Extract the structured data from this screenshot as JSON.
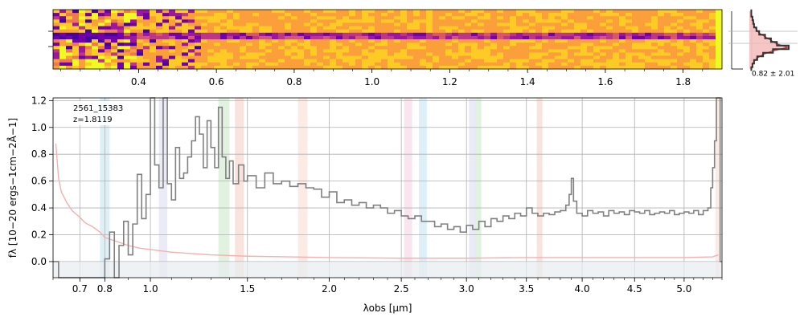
{
  "figure": {
    "object_label": "2561_15383",
    "redshift_label": "z=1.8119",
    "profile_stat": "0.82 ± 2.01"
  },
  "colors": {
    "spectrum": "#808080",
    "model": "#f4b0b0",
    "profile_fill": "#f4b8b8",
    "profile_model": "#c0392b",
    "profile_data": "#333333",
    "grid": "#b0b0b0",
    "shade": "#e8ecf0",
    "line_bands": [
      "#d6ecf5",
      "#e6e6f5",
      "#d9efd9",
      "#f7dcd6",
      "#fbe6dd",
      "#f7dfe8"
    ]
  },
  "chart_data": [
    {
      "type": "heatmap",
      "description_note": "2D spectrum image with top wavelength axis",
      "x_ticks": [
        0.4,
        0.6,
        0.8,
        1.0,
        1.2,
        1.4,
        1.6,
        1.8
      ],
      "x_tick_labels": [
        "0.4",
        "0.6",
        "0.8",
        "1.0",
        "1.2",
        "1.4",
        "1.6",
        "1.8"
      ],
      "xlim": [
        0.18,
        1.9
      ],
      "colormap": "plasma-like (yellow high, purple low)",
      "trace_row_fraction": 0.45
    },
    {
      "type": "line",
      "xlabel": "λobs [μm]",
      "ylabel": "fλ [10−20 ergs−1cm−2Å−1]",
      "xscale": "sqrt-like (nonlinear)",
      "xlim": [
        0.6,
        5.4
      ],
      "ylim": [
        -0.12,
        1.22
      ],
      "x_ticks": [
        0.7,
        0.8,
        1.0,
        1.5,
        2.0,
        2.5,
        3.0,
        3.5,
        4.0,
        4.5,
        5.0
      ],
      "x_tick_labels": [
        "0.7",
        "0.8",
        "1.0",
        "1.5",
        "2.0",
        "2.5",
        "3.0",
        "3.5",
        "4.0",
        "4.5",
        "5.0"
      ],
      "y_ticks": [
        0.0,
        0.2,
        0.4,
        0.6,
        0.8,
        1.0,
        1.2
      ],
      "y_tick_labels": [
        "0.0",
        "0.2",
        "0.4",
        "0.6",
        "0.8",
        "1.0",
        "1.2"
      ],
      "grid": true,
      "line_bands": [
        [
          0.78,
          0.82
        ],
        [
          1.04,
          1.08
        ],
        [
          1.34,
          1.4
        ],
        [
          1.43,
          1.48
        ],
        [
          1.8,
          1.86
        ],
        [
          2.52,
          2.58
        ],
        [
          2.63,
          2.69
        ],
        [
          3.02,
          3.07
        ],
        [
          3.07,
          3.12
        ],
        [
          3.59,
          3.64
        ],
        [
          5.33,
          5.37
        ]
      ],
      "series": [
        {
          "role": "observed",
          "x": [
            0.6,
            0.62,
            0.65,
            0.68,
            0.7,
            0.72,
            0.74,
            0.76,
            0.78,
            0.8,
            0.82,
            0.84,
            0.86,
            0.88,
            0.9,
            0.92,
            0.94,
            0.96,
            0.98,
            1.0,
            1.02,
            1.04,
            1.06,
            1.08,
            1.1,
            1.12,
            1.14,
            1.16,
            1.18,
            1.2,
            1.22,
            1.24,
            1.26,
            1.28,
            1.3,
            1.32,
            1.34,
            1.36,
            1.38,
            1.4,
            1.42,
            1.45,
            1.48,
            1.5,
            1.55,
            1.6,
            1.65,
            1.7,
            1.75,
            1.8,
            1.85,
            1.9,
            1.95,
            2.0,
            2.05,
            2.1,
            2.15,
            2.2,
            2.25,
            2.3,
            2.35,
            2.4,
            2.45,
            2.5,
            2.55,
            2.6,
            2.65,
            2.7,
            2.75,
            2.8,
            2.85,
            2.9,
            2.95,
            3.0,
            3.05,
            3.1,
            3.15,
            3.2,
            3.25,
            3.3,
            3.35,
            3.4,
            3.45,
            3.5,
            3.55,
            3.6,
            3.65,
            3.7,
            3.75,
            3.8,
            3.85,
            3.88,
            3.9,
            3.92,
            3.95,
            4.0,
            4.05,
            4.1,
            4.15,
            4.2,
            4.25,
            4.3,
            4.35,
            4.4,
            4.45,
            4.5,
            4.55,
            4.6,
            4.65,
            4.7,
            4.75,
            4.8,
            4.85,
            4.9,
            4.95,
            5.0,
            5.05,
            5.1,
            5.15,
            5.2,
            5.25,
            5.28,
            5.3,
            5.32,
            5.34,
            5.36,
            5.38,
            5.4
          ],
          "y": [
            0.0,
            -0.12,
            -0.12,
            -0.12,
            -0.12,
            -0.12,
            -0.12,
            -0.12,
            -0.12,
            0.02,
            0.22,
            -0.12,
            0.12,
            0.3,
            0.05,
            0.28,
            0.65,
            0.32,
            0.5,
            1.22,
            0.72,
            0.55,
            1.22,
            0.58,
            0.46,
            0.85,
            0.62,
            0.66,
            0.78,
            0.9,
            1.08,
            0.95,
            0.7,
            1.05,
            0.85,
            0.7,
            1.15,
            0.78,
            0.62,
            0.75,
            0.58,
            0.72,
            0.6,
            0.64,
            0.55,
            0.66,
            0.58,
            0.6,
            0.56,
            0.58,
            0.55,
            0.54,
            0.48,
            0.52,
            0.44,
            0.46,
            0.42,
            0.44,
            0.4,
            0.42,
            0.4,
            0.36,
            0.38,
            0.34,
            0.32,
            0.34,
            0.3,
            0.3,
            0.26,
            0.28,
            0.24,
            0.26,
            0.22,
            0.27,
            0.24,
            0.3,
            0.26,
            0.32,
            0.3,
            0.34,
            0.32,
            0.36,
            0.34,
            0.4,
            0.36,
            0.34,
            0.36,
            0.35,
            0.37,
            0.38,
            0.42,
            0.5,
            0.62,
            0.45,
            0.36,
            0.34,
            0.38,
            0.36,
            0.37,
            0.34,
            0.38,
            0.36,
            0.37,
            0.35,
            0.38,
            0.37,
            0.36,
            0.38,
            0.35,
            0.36,
            0.37,
            0.36,
            0.38,
            0.35,
            0.36,
            0.37,
            0.36,
            0.38,
            0.35,
            0.38,
            0.4,
            0.55,
            0.7,
            0.9,
            1.22,
            1.22,
            0.0,
            0.0
          ]
        },
        {
          "role": "model",
          "x": [
            0.61,
            0.62,
            0.63,
            0.65,
            0.67,
            0.7,
            0.72,
            0.75,
            0.78,
            0.8,
            0.85,
            0.9,
            0.95,
            1.0,
            1.1,
            1.2,
            1.3,
            1.4,
            1.5,
            1.75,
            2.0,
            2.5,
            3.0,
            3.5,
            4.0,
            4.5,
            5.0,
            5.3,
            5.36
          ],
          "y": [
            0.88,
            0.62,
            0.52,
            0.44,
            0.38,
            0.33,
            0.29,
            0.26,
            0.22,
            0.18,
            0.15,
            0.12,
            0.1,
            0.09,
            0.07,
            0.06,
            0.05,
            0.045,
            0.04,
            0.035,
            0.03,
            0.025,
            0.025,
            0.03,
            0.03,
            0.03,
            0.03,
            0.035,
            0.05
          ]
        }
      ]
    },
    {
      "type": "line",
      "description_note": "cross-dispersion profile panel",
      "annotation": "0.82 ± 2.01",
      "profile": [
        0.05,
        0.05,
        0.08,
        0.1,
        0.12,
        0.18,
        0.25,
        0.4,
        0.55,
        0.7,
        1.0,
        0.6,
        0.35,
        0.2,
        0.12,
        0.08,
        0.05
      ]
    }
  ]
}
